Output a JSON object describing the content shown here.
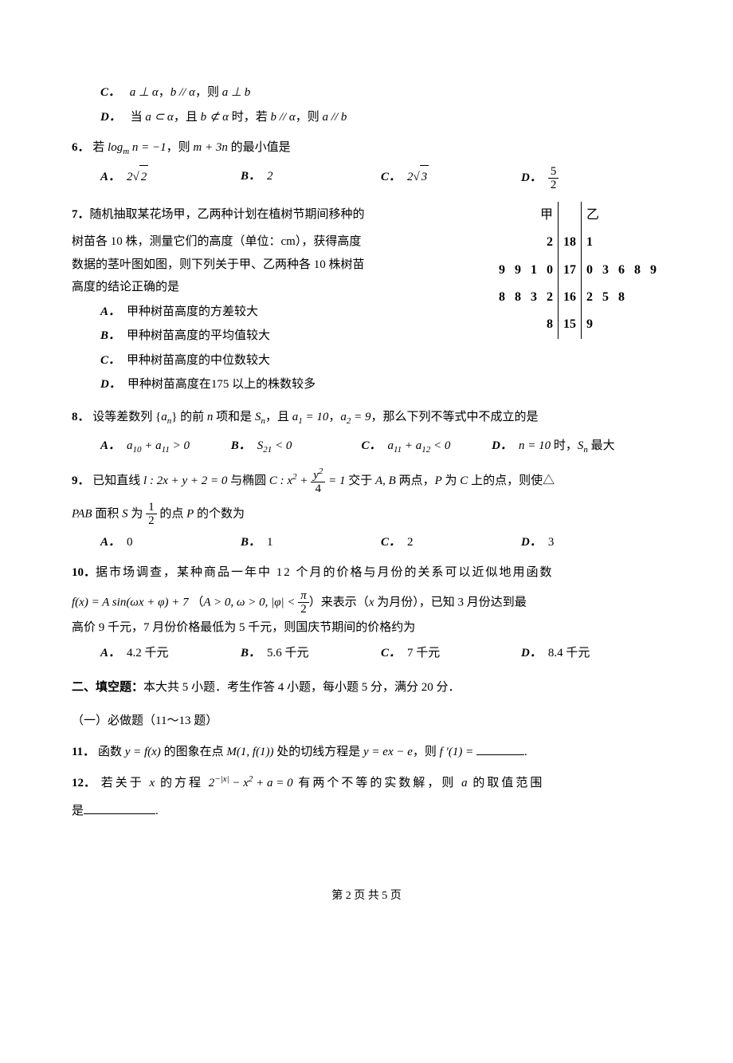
{
  "q5": {
    "C": {
      "label": "C．",
      "text": "a ⊥ α，b // α，则 a ⊥ b"
    },
    "D": {
      "label": "D．",
      "text": "当 a ⊂ α，且 b ⊄ α 时，若 b // α，则 a // b"
    }
  },
  "q6": {
    "num": "6．",
    "stem_pre": "若 log",
    "stem_sub": "m",
    "stem_mid": " n = −1，则 m + 3n 的最小值是",
    "A": {
      "label": "A．",
      "text": "2√2"
    },
    "B": {
      "label": "B．",
      "text": "2"
    },
    "C": {
      "label": "C．",
      "text": "2√3"
    },
    "D": {
      "label": "D．",
      "num": "5",
      "den": "2"
    }
  },
  "q7": {
    "num": "7．",
    "stem1": "随机抽取某花场甲，乙两种计划在植树节期间移种的",
    "stem2": "树苗各 10 株，测量它们的高度（单位：cm），获得高度",
    "stem3": "数据的茎叶图如图，则下列关于甲、乙两种各 10 株树苗",
    "stem4": "高度的结论正确的是",
    "A": {
      "label": "A．",
      "text": "甲种树苗高度的方差较大"
    },
    "B": {
      "label": "B．",
      "text": "甲种树苗高度的平均值较大"
    },
    "C": {
      "label": "C．",
      "text": "甲种树苗高度的中位数较大"
    },
    "D": {
      "label": "D．",
      "text": "甲种树苗高度在175 以上的株数较多"
    },
    "stemleaf": {
      "header_left": "甲",
      "header_right": "乙",
      "rows": [
        {
          "left": [
            "",
            "",
            "",
            "2"
          ],
          "stem": "18",
          "right": [
            "1",
            "",
            "",
            "",
            ""
          ]
        },
        {
          "left": [
            "9",
            "9",
            "1",
            "0"
          ],
          "stem": "17",
          "right": [
            "0",
            "3",
            "6",
            "8",
            "9"
          ]
        },
        {
          "left": [
            "8",
            "8",
            "3",
            "2"
          ],
          "stem": "16",
          "right": [
            "2",
            "5",
            "8",
            "",
            ""
          ]
        },
        {
          "left": [
            "",
            "",
            "",
            "8"
          ],
          "stem": "15",
          "right": [
            "9",
            "",
            "",
            "",
            ""
          ]
        }
      ]
    }
  },
  "q8": {
    "num": "8．",
    "stem": "设等差数列 {aₙ} 的前 n 项和是 Sₙ，且 a₁ = 10，a₂ = 9，那么下列不等式中不成立的是",
    "A": {
      "label": "A．",
      "text": "a₁₀ + a₁₁ > 0"
    },
    "B": {
      "label": "B．",
      "text": "S₂₁ < 0"
    },
    "C": {
      "label": "C．",
      "text": "a₁₁ + a₁₂ < 0"
    },
    "D": {
      "label": "D．",
      "text": "n = 10 时，Sₙ 最大"
    }
  },
  "q9": {
    "num": "9．",
    "stem_a": "已知直线 l : 2x + y + 2 = 0 与椭圆 C : x² + ",
    "frac_num": "y²",
    "frac_den": "4",
    "stem_b": " = 1 交于 A, B 两点，P 为 C 上的点，则使△",
    "stem_c": "PAB 面积 S 为 ",
    "frac2_num": "1",
    "frac2_den": "2",
    "stem_d": " 的点 P 的个数为",
    "A": {
      "label": "A．",
      "text": "0"
    },
    "B": {
      "label": "B．",
      "text": "1"
    },
    "C": {
      "label": "C．",
      "text": "2"
    },
    "D": {
      "label": "D．",
      "text": "3"
    }
  },
  "q10": {
    "num": "10．",
    "stem1": "据市场调查，某种商品一年中 12 个月的价格与月份的关系可以近似地用函数",
    "stem2a": "f(x) = A sin(ωx + φ) + 7 （A > 0, ω > 0, |φ| < ",
    "frac_num": "π",
    "frac_den": "2",
    "stem2b": "）来表示（x 为月份），已知 3 月份达到最",
    "stem3": "高价 9 千元，7 月份价格最低为 5 千元，则国庆节期间的价格约为",
    "A": {
      "label": "A．",
      "text": "4.2 千元"
    },
    "B": {
      "label": "B．",
      "text": "5.6 千元"
    },
    "C": {
      "label": "C．",
      "text": "7 千元"
    },
    "D": {
      "label": "D．",
      "text": "8.4 千元"
    }
  },
  "section2": {
    "title": "二、填空题：",
    "desc": "本大共 5 小题．考生作答 4 小题，每小题 5 分，满分 20 分．",
    "sub": "（一）必做题（11～13 题）"
  },
  "q11": {
    "num": "11．",
    "stem_a": "函数 y = f(x) 的图象在点 M(1, f(1)) 处的切线方程是 y = ex − e，则 f ′(1) = ",
    "stem_b": "."
  },
  "q12": {
    "num": "12．",
    "stem_a": "若关于 x 的方程 2",
    "exp": "−|x|",
    "stem_b": " − x² + a = 0 有两个不等的实数解，则 a 的取值范围",
    "stem_c": "是",
    "stem_d": "."
  },
  "footer": "第 2 页 共 5 页"
}
